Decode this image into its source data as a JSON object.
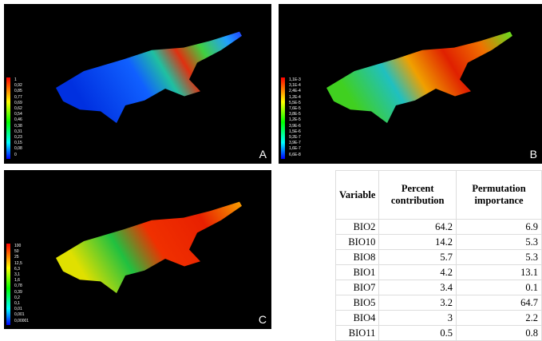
{
  "panels": [
    {
      "label": "A",
      "legend": [
        "1",
        "0,92",
        "0,85",
        "0,77",
        "0,69",
        "0,62",
        "0,54",
        "0,46",
        "0,38",
        "0,31",
        "0,23",
        "0,15",
        "0,08",
        "0"
      ]
    },
    {
      "label": "B",
      "legend": [
        "1,1E-3",
        "3,1E-4",
        "2,4E-4",
        "1,2E-4",
        "5,5E-5",
        "7,6E-5",
        "3,8E-5",
        "1,2E-5",
        "3,9E-6",
        "1,5E-6",
        "9,2E-7",
        "3,9E-7",
        "1,6E-7",
        "6,6E-8"
      ]
    },
    {
      "label": "C",
      "legend": [
        "100",
        "50",
        "25",
        "12,5",
        "6,3",
        "3,1",
        "1,6",
        "0,78",
        "0,39",
        "0,2",
        "0,1",
        "0,01",
        "0,001",
        "0,00001"
      ]
    }
  ],
  "table": {
    "header": [
      "Variable",
      "Percent contribution",
      "Permutation importance"
    ],
    "rows": [
      [
        "BIO2",
        "64.2",
        "6.9"
      ],
      [
        "BIO10",
        "14.2",
        "5.3"
      ],
      [
        "BIO8",
        "5.7",
        "5.3"
      ],
      [
        "BIO1",
        "4.2",
        "13.1"
      ],
      [
        "BIO7",
        "3.4",
        "0.1"
      ],
      [
        "BIO5",
        "3.2",
        "64.7"
      ],
      [
        "BIO4",
        "3",
        "2.2"
      ],
      [
        "BIO11",
        "0.5",
        "0.8"
      ]
    ]
  }
}
